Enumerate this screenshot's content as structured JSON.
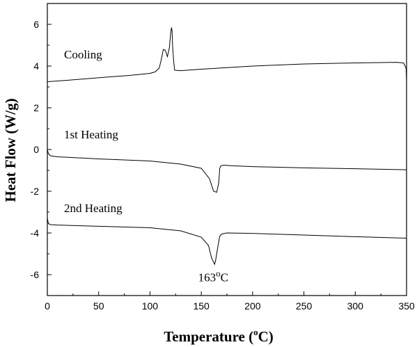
{
  "chart_data": {
    "type": "line",
    "xlabel": "Temperature (",
    "xlabel_sup": "o",
    "xlabel_unit": "C)",
    "ylabel": "Heat Flow (W/g)",
    "xlim": [
      0,
      350
    ],
    "ylim": [
      -7,
      7
    ],
    "xticks": [
      "0",
      "50",
      "100",
      "150",
      "200",
      "250",
      "300",
      "350"
    ],
    "yticks": [
      "6",
      "4",
      "2",
      "0",
      "-2",
      "-4",
      "-6"
    ],
    "grid": false,
    "series": [
      {
        "name": "Cooling",
        "x": [
          0,
          20,
          40,
          60,
          80,
          100,
          105,
          109,
          111,
          113,
          115,
          117,
          119,
          120,
          121,
          121.5,
          122,
          123,
          124,
          130,
          150,
          200,
          250,
          300,
          340,
          347,
          349.5,
          350
        ],
        "y": [
          3.25,
          3.32,
          3.4,
          3.48,
          3.55,
          3.65,
          3.72,
          3.9,
          4.3,
          4.8,
          4.75,
          4.45,
          4.9,
          5.5,
          5.85,
          5.7,
          5.0,
          4.3,
          3.8,
          3.78,
          3.85,
          4.0,
          4.1,
          4.15,
          4.18,
          4.15,
          3.9,
          3.3
        ]
      },
      {
        "name": "1st Heating",
        "x": [
          0,
          1,
          3,
          10,
          50,
          100,
          130,
          150,
          158,
          162,
          165,
          167,
          168,
          169,
          172,
          180,
          200,
          250,
          300,
          350
        ],
        "y": [
          0.0,
          -0.2,
          -0.3,
          -0.35,
          -0.45,
          -0.55,
          -0.7,
          -0.9,
          -1.4,
          -2.0,
          -2.05,
          -1.6,
          -0.9,
          -0.78,
          -0.75,
          -0.78,
          -0.82,
          -0.88,
          -0.92,
          -0.97
        ]
      },
      {
        "name": "2nd Heating",
        "x": [
          0,
          1,
          3,
          10,
          50,
          100,
          130,
          150,
          157,
          160,
          163,
          164,
          166,
          168,
          170,
          175,
          200,
          250,
          300,
          350
        ],
        "y": [
          -3.3,
          -3.55,
          -3.6,
          -3.62,
          -3.68,
          -3.75,
          -3.9,
          -4.2,
          -4.6,
          -5.2,
          -5.5,
          -5.3,
          -4.7,
          -4.15,
          -4.05,
          -4.0,
          -4.02,
          -4.1,
          -4.18,
          -4.25
        ]
      }
    ],
    "annotations": [
      {
        "text": "163",
        "sup": "o",
        "suffix": "C",
        "x": 163,
        "y": -6.15
      }
    ]
  }
}
